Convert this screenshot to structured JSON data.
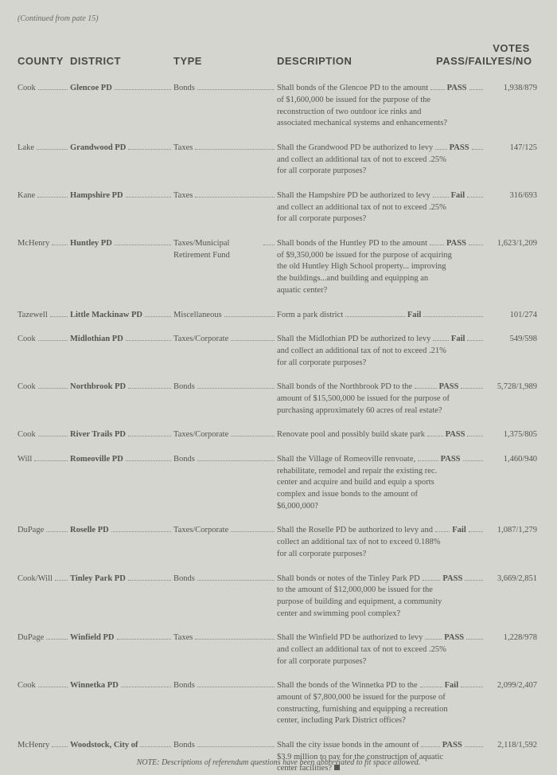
{
  "continued": "(Continued from pate 15)",
  "headers": {
    "county": "COUNTY",
    "district": "DISTRICT",
    "type": "TYPE",
    "description": "DESCRIPTION",
    "passfail": "PASS/FAIL",
    "votes_top": "VOTES",
    "votes_bottom": "YES/NO"
  },
  "rows": [
    {
      "county": "Cook",
      "district": "Glencoe PD",
      "type": "Bonds",
      "desc_first": "Shall bonds of the Glencoe PD to the amount",
      "desc_rest": "of $1,600,000 be issued for the purpose of the reconstruction of two outdoor ice rinks and associated mechanical systems and enhancements?",
      "passfail": "PASS",
      "votes": "1,938/879"
    },
    {
      "county": "Lake",
      "district": "Grandwood PD",
      "type": "Taxes",
      "desc_first": "Shall the Grandwood PD be authorized to levy",
      "desc_rest": "and collect an additional tax of not to exceed .25% for all corporate purposes?",
      "passfail": "PASS",
      "votes": "147/125"
    },
    {
      "county": "Kane",
      "district": "Hampshire PD",
      "type": "Taxes",
      "desc_first": "Shall the Hampshire PD be authorized to levy",
      "desc_rest": "and collect an additional tax of not to exceed .25% for all corporate purposes?",
      "passfail": "Fail",
      "votes": "316/693"
    },
    {
      "county": "McHenry",
      "district": "Huntley PD",
      "type": "Taxes/Municipal Retirement Fund",
      "desc_first": "Shall bonds of the Huntley PD to the amount",
      "desc_rest": "of $9,350,000 be issued for the purpose of acquiring the old Huntley High School property... improving the buildings...and building and equipping an aquatic center?",
      "passfail": "PASS",
      "votes": "1,623/1,209"
    },
    {
      "county": "Tazewell",
      "district": "Little Mackinaw PD",
      "type": "Miscellaneous",
      "desc_first": "Form a park district",
      "desc_rest": "",
      "passfail": "Fail",
      "votes": "101/274"
    },
    {
      "county": "Cook",
      "district": "Midlothian PD",
      "type": "Taxes/Corporate",
      "desc_first": "Shall the Midlothian PD be authorized to levy",
      "desc_rest": "and collect an additional tax of not to exceed .21% for all corporate purposes?",
      "passfail": "Fail",
      "votes": "549/598"
    },
    {
      "county": "Cook",
      "district": "Northbrook PD",
      "type": "Bonds",
      "desc_first": "Shall bonds of the Northbrook PD to the",
      "desc_rest": "amount of $15,500,000 be issued for the purpose of purchasing approximately 60 acres of real estate?",
      "passfail": "PASS",
      "votes": "5,728/1,989"
    },
    {
      "county": "Cook",
      "district": "River Trails PD",
      "type": "Taxes/Corporate",
      "desc_first": "Renovate pool and possibly build skate park",
      "desc_rest": "",
      "passfail": "PASS",
      "votes": "1,375/805"
    },
    {
      "county": "Will",
      "district": "Romeoville PD",
      "type": "Bonds",
      "desc_first": "Shall the Village of Romeoville renvoate,",
      "desc_rest": "rehabilitate, remodel and repair the existing rec. center and acquire and build and equip a sports complex and issue bonds to the amount of $6,000,000?",
      "passfail": "PASS",
      "votes": "1,460/940"
    },
    {
      "county": "DuPage",
      "district": "Roselle PD",
      "type": "Taxes/Corporate",
      "desc_first": "Shall the Roselle PD be authorized to levy and",
      "desc_rest": "collect an additional tax of not to exceed 0.188% for all corporate purposes?",
      "passfail": "Fail",
      "votes": "1,087/1,279"
    },
    {
      "county": "Cook/Will",
      "district": "Tinley Park PD",
      "type": "Bonds",
      "desc_first": "Shall bonds or notes of the Tinley Park PD",
      "desc_rest": "to the amount of $12,000,000 be issued for the purpose of building and equipment, a community center and swimming pool complex?",
      "passfail": "PASS",
      "votes": "3,669/2,851"
    },
    {
      "county": "DuPage",
      "district": "Winfield PD",
      "type": "Taxes",
      "desc_first": "Shall the Winfield PD be authorized to levy",
      "desc_rest": "and collect an additional tax of not to exceed .25% for all corporate purposes?",
      "passfail": "PASS",
      "votes": "1,228/978"
    },
    {
      "county": "Cook",
      "district": "Winnetka PD",
      "type": "Bonds",
      "desc_first": "Shall the bonds of the Winnetka PD to the",
      "desc_rest": "amount of $7,800,000 be issued for the purpose of constructing, furnishing and equipping a recreation center, including Park District offices?",
      "passfail": "Fail",
      "votes": "2,099/2,407"
    },
    {
      "county": "McHenry",
      "district": "Woodstock, City of",
      "type": "Bonds",
      "desc_first": "Shall the city issue bonds in the amount of",
      "desc_rest": "$3.9 million to pay for the construction of aquatic center facilities?",
      "passfail": "PASS",
      "votes": "2,118/1,592",
      "end": true
    }
  ],
  "footnote": "NOTE: Descriptions of referendum questions have been abbreviated to fit space allowed."
}
